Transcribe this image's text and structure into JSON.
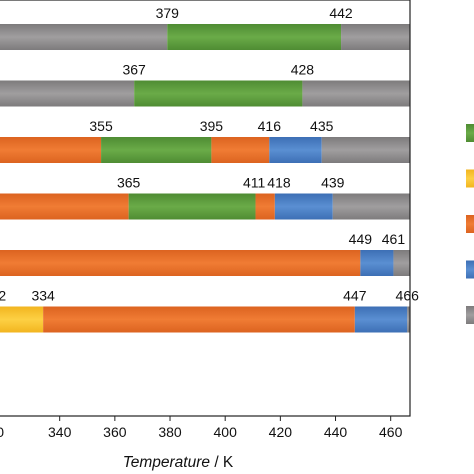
{
  "chart_data": {
    "type": "bar",
    "orientation": "horizontal-stacked",
    "xlabel_italic": "Temperature",
    "xlabel_unit": " / K",
    "xlim": [
      318,
      467
    ],
    "x_ticks": [
      "340",
      "360",
      "380",
      "400",
      "420",
      "440",
      "460"
    ],
    "x_tick_values": [
      340,
      360,
      380,
      400,
      420,
      440,
      460
    ],
    "x_tick_partial": "0",
    "colors": {
      "green": "#5a9a3c",
      "orange": "#e9702a",
      "yellow": "#f7c231",
      "blue": "#4a7fc4",
      "gray": "#8f8d8e"
    },
    "legend_colors": [
      "green",
      "yellow",
      "orange",
      "blue",
      "gray"
    ],
    "rows": [
      {
        "segments": [
          {
            "start": 318,
            "end": 379,
            "color": "gray"
          },
          {
            "start": 379,
            "end": 442,
            "color": "green"
          },
          {
            "start": 442,
            "end": 467,
            "color": "gray"
          }
        ],
        "labels": [
          {
            "text": "379",
            "x": 379
          },
          {
            "text": "442",
            "x": 442
          }
        ]
      },
      {
        "segments": [
          {
            "start": 318,
            "end": 367,
            "color": "gray"
          },
          {
            "start": 367,
            "end": 428,
            "color": "green"
          },
          {
            "start": 428,
            "end": 467,
            "color": "gray"
          }
        ],
        "labels": [
          {
            "text": "367",
            "x": 367
          },
          {
            "text": "428",
            "x": 428
          }
        ]
      },
      {
        "segments": [
          {
            "start": 318,
            "end": 355,
            "color": "orange"
          },
          {
            "start": 355,
            "end": 395,
            "color": "green"
          },
          {
            "start": 395,
            "end": 416,
            "color": "orange"
          },
          {
            "start": 416,
            "end": 435,
            "color": "blue"
          },
          {
            "start": 435,
            "end": 467,
            "color": "gray"
          }
        ],
        "labels": [
          {
            "text": "355",
            "x": 355
          },
          {
            "text": "395",
            "x": 395
          },
          {
            "text": "416",
            "x": 416
          },
          {
            "text": "435",
            "x": 435
          }
        ]
      },
      {
        "segments": [
          {
            "start": 318,
            "end": 365,
            "color": "orange"
          },
          {
            "start": 365,
            "end": 411,
            "color": "green"
          },
          {
            "start": 411,
            "end": 418,
            "color": "orange"
          },
          {
            "start": 418,
            "end": 439,
            "color": "blue"
          },
          {
            "start": 439,
            "end": 467,
            "color": "gray"
          }
        ],
        "labels": [
          {
            "text": "365",
            "x": 365
          },
          {
            "text": "411",
            "x": 410.5
          },
          {
            "text": "418",
            "x": 419.5
          },
          {
            "text": "439",
            "x": 439
          }
        ]
      },
      {
        "segments": [
          {
            "start": 318,
            "end": 449,
            "color": "orange"
          },
          {
            "start": 449,
            "end": 461,
            "color": "blue"
          },
          {
            "start": 461,
            "end": 467,
            "color": "gray"
          }
        ],
        "labels": [
          {
            "text": "449",
            "x": 449
          },
          {
            "text": "461",
            "x": 461
          }
        ]
      },
      {
        "segments": [
          {
            "start": 318,
            "end": 334,
            "color": "yellow"
          },
          {
            "start": 334,
            "end": 447,
            "color": "orange"
          },
          {
            "start": 447,
            "end": 466,
            "color": "blue"
          },
          {
            "start": 466,
            "end": 467,
            "color": "gray"
          }
        ],
        "labels": [
          {
            "text": "2",
            "x": 319.2
          },
          {
            "text": "334",
            "x": 334
          },
          {
            "text": "447",
            "x": 447
          },
          {
            "text": "466",
            "x": 466
          }
        ]
      }
    ]
  }
}
